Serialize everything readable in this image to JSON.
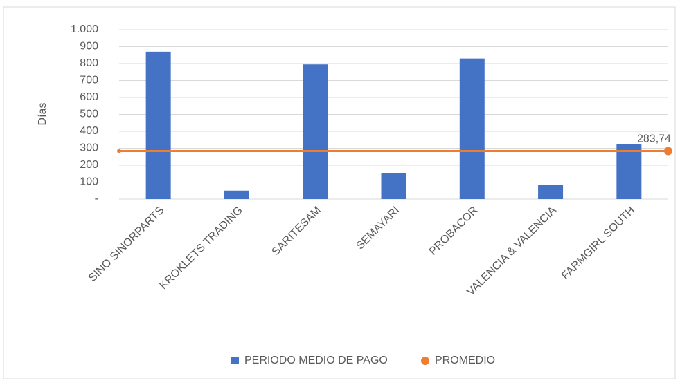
{
  "chart_data": {
    "type": "bar_line",
    "y_axis_label": "Días",
    "categories": [
      "SINO SINORPARTS",
      "KROKLETS TRADING",
      "SARITESAM",
      "SEMAYARI",
      "PROBACOR",
      "VALENCIA & VALENCIA",
      "FARMGIRL SOUTH"
    ],
    "series": [
      {
        "name": "PERIODO MEDIO DE PAGO",
        "type": "bar",
        "color": "#4472c4",
        "values": [
          870,
          50,
          795,
          155,
          830,
          85,
          325
        ]
      },
      {
        "name": "PROMEDIO",
        "type": "line",
        "color": "#ed7d31",
        "values": [
          283.74,
          283.74,
          283.74,
          283.74,
          283.74,
          283.74,
          283.74
        ],
        "value_labels": [
          null,
          null,
          null,
          null,
          null,
          null,
          "283,74"
        ]
      }
    ],
    "ylim": [
      0,
      1000
    ],
    "yticks": [
      {
        "value": 0,
        "label": "-"
      },
      100,
      200,
      300,
      400,
      500,
      600,
      700,
      800,
      900,
      {
        "value": 1000,
        "label": "1.000"
      }
    ],
    "grid": true,
    "legend": "bottom"
  }
}
